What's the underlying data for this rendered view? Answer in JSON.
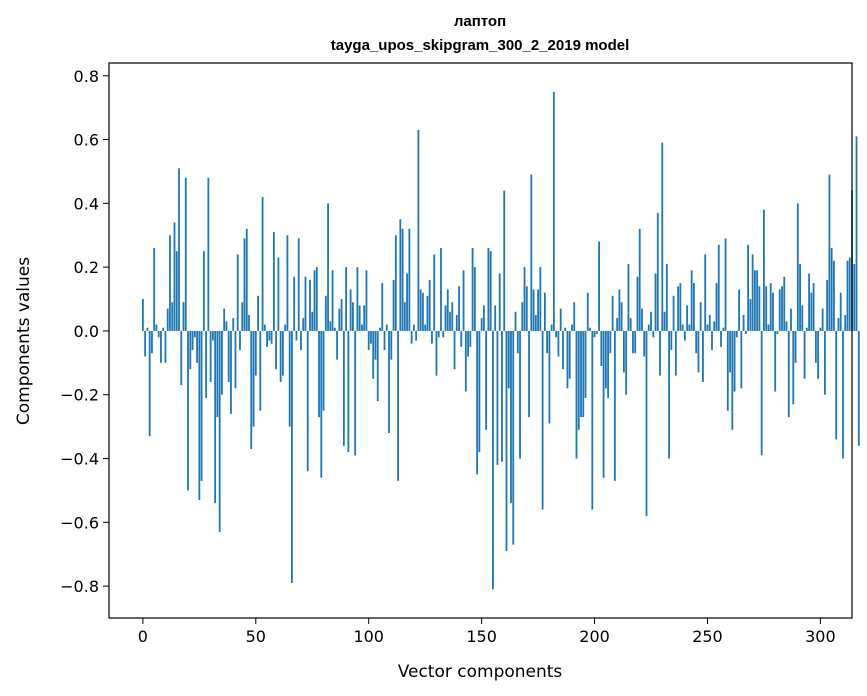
{
  "chart_data": {
    "type": "bar",
    "title": "лаптоп",
    "subtitle": "tayga_upos_skipgram_300_2_2019 model",
    "xlabel": "Vector components",
    "ylabel": "Components values",
    "xlim": [
      -15,
      314
    ],
    "ylim": [
      -0.9,
      0.84
    ],
    "xticks": [
      0,
      50,
      100,
      150,
      200,
      250,
      300
    ],
    "xtick_labels": [
      "0",
      "50",
      "100",
      "150",
      "200",
      "250",
      "300"
    ],
    "yticks": [
      -0.8,
      -0.6,
      -0.4,
      -0.2,
      0.0,
      0.2,
      0.4,
      0.6,
      0.8
    ],
    "ytick_labels": [
      "−0.8",
      "−0.6",
      "−0.4",
      "−0.2",
      "0.0",
      "0.2",
      "0.4",
      "0.6",
      "0.8"
    ],
    "bar_color": "#1f77b4",
    "series": [
      {
        "name": "лаптоп",
        "values": [
          0.1,
          -0.08,
          0.01,
          -0.33,
          -0.07,
          0.26,
          0.02,
          -0.02,
          -0.1,
          0.01,
          -0.1,
          0.07,
          0.3,
          0.09,
          0.34,
          0.25,
          0.51,
          -0.17,
          0.09,
          0.48,
          -0.5,
          -0.12,
          -0.06,
          -0.02,
          -0.1,
          -0.53,
          -0.47,
          0.25,
          -0.21,
          0.48,
          -0.16,
          -0.03,
          -0.54,
          -0.27,
          -0.63,
          -0.2,
          0.07,
          0.03,
          -0.16,
          -0.26,
          0.04,
          -0.18,
          0.24,
          -0.06,
          0.09,
          0.29,
          0.32,
          0.05,
          -0.37,
          -0.3,
          -0.14,
          0.11,
          -0.25,
          0.42,
          0.02,
          -0.05,
          -0.03,
          -0.04,
          0.31,
          -0.12,
          0.23,
          -0.16,
          -0.14,
          0.02,
          0.3,
          -0.3,
          -0.79,
          0.17,
          -0.03,
          0.29,
          -0.06,
          0.04,
          0.17,
          -0.44,
          0.16,
          0.06,
          0.19,
          0.2,
          -0.27,
          -0.46,
          -0.25,
          0.11,
          0.4,
          0.03,
          0.19,
          0.01,
          -0.09,
          0.07,
          0.1,
          -0.36,
          0.2,
          -0.38,
          0.13,
          0.09,
          -0.39,
          0.2,
          0.08,
          0.02,
          0.08,
          0.19,
          -0.06,
          -0.04,
          -0.15,
          -0.09,
          -0.22,
          0.01,
          0.15,
          -0.06,
          0.02,
          -0.32,
          -0.09,
          0.16,
          0.3,
          -0.47,
          0.35,
          0.32,
          0.09,
          0.18,
          0.32,
          -0.04,
          0.02,
          -0.03,
          0.63,
          0.13,
          0.12,
          0.02,
          0.11,
          0.16,
          -0.04,
          0.24,
          -0.14,
          -0.02,
          0.26,
          -0.02,
          0.08,
          0.13,
          0.06,
          0.09,
          -0.12,
          0.05,
          0.14,
          -0.05,
          0.19,
          -0.19,
          -0.08,
          -0.05,
          0.26,
          0.2,
          -0.45,
          -0.38,
          0.04,
          0.08,
          -0.31,
          0.26,
          0.25,
          -0.81,
          0.08,
          -0.42,
          0.18,
          -0.41,
          0.44,
          -0.69,
          -0.18,
          -0.54,
          -0.67,
          0.06,
          -0.07,
          -0.4,
          0.09,
          0.2,
          0.14,
          -0.27,
          0.49,
          0.13,
          0.05,
          0.13,
          0.2,
          -0.56,
          0.12,
          -0.07,
          -0.29,
          0.02,
          0.75,
          -0.02,
          -0.08,
          0.07,
          -0.12,
          0.01,
          -0.18,
          -0.15,
          0.02,
          0.09,
          -0.4,
          -0.31,
          -0.27,
          -0.27,
          -0.21,
          0.12,
          0.01,
          -0.56,
          -0.02,
          -0.01,
          0.28,
          -0.11,
          -0.46,
          -0.18,
          -0.21,
          -0.07,
          0.11,
          -0.47,
          0.04,
          0.13,
          0.09,
          -0.13,
          -0.2,
          0.21,
          0.04,
          -0.07,
          -0.07,
          0.17,
          0.32,
          0.07,
          -0.08,
          -0.58,
          0.02,
          0.06,
          -0.02,
          0.18,
          0.37,
          -0.14,
          0.59,
          0.06,
          0.21,
          -0.4,
          -0.06,
          0.11,
          -0.14,
          0.14,
          0.15,
          0.02,
          -0.03,
          0.08,
          0.02,
          0.19,
          0.15,
          -0.07,
          -0.13,
          0.09,
          -0.16,
          0.24,
          0.02,
          0.05,
          -0.06,
          0.03,
          0.15,
          0.27,
          -0.05,
          0.01,
          0.29,
          -0.25,
          -0.13,
          -0.31,
          -0.19,
          -0.02,
          0.13,
          -0.18,
          0.05,
          -0.01,
          0.27,
          0.1,
          0.24,
          0.19,
          0.19,
          0.14,
          -0.39,
          0.38,
          0.14,
          0.02,
          0.15,
          0.12,
          -0.19,
          -0.01,
          0.13,
          0.14,
          0.17,
          0.03,
          -0.27,
          0.07,
          -0.23,
          -0.1,
          0.4,
          0.21,
          0.08,
          -0.15,
          0.01,
          0.18,
          0.12,
          0.15,
          -0.1,
          -0.15,
          0.01,
          0.07,
          -0.2,
          0.16,
          0.49,
          0.26,
          0.22,
          -0.34,
          0.04,
          0.12,
          -0.4,
          0.05,
          0.22,
          0.23,
          0.44,
          0.21,
          0.61,
          -0.36
        ]
      }
    ]
  }
}
